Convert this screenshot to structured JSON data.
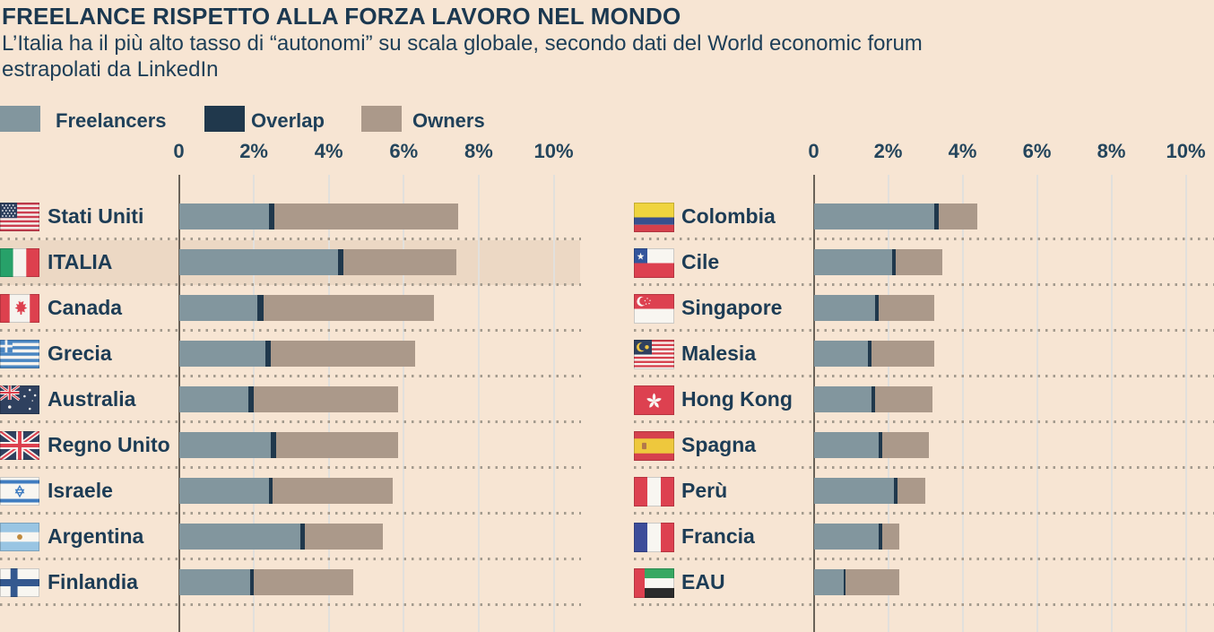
{
  "title": "FREELANCE RISPETTO ALLA FORZA LAVORO NEL MONDO",
  "subtitle_lines": [
    "L’Italia ha il più alto tasso di “autonomi” su scala globale, secondo dati del World economic forum",
    "estrapolati da LinkedIn"
  ],
  "legend": {
    "items": [
      {
        "label": "Freelancers",
        "color": "#82969E"
      },
      {
        "label": "Overlap",
        "color": "#20384C"
      },
      {
        "label": "Owners",
        "color": "#AB998A"
      }
    ]
  },
  "axis": {
    "tick_labels": [
      "0",
      "2%",
      "4%",
      "6%",
      "8%",
      "10%"
    ]
  },
  "colors": {
    "background": "#F7E5D3",
    "highlight_row": "#ECD8C4",
    "freelancers": "#82969E",
    "overlap": "#20384C",
    "owners": "#AB998A",
    "text": "#1D3A52",
    "gridline": "#E2E0DC",
    "axis_line": "#6A6258",
    "dotted_separator": "#A49B8E"
  },
  "chart_data": {
    "type": "bar",
    "orientation": "horizontal",
    "stacked": true,
    "unit": "percent of workforce",
    "x_ticks": [
      0,
      2,
      4,
      6,
      8,
      10
    ],
    "xlim": [
      0,
      10.7
    ],
    "series_keys": [
      "freelancers",
      "overlap",
      "owners"
    ],
    "panels": [
      {
        "rows": [
          {
            "country": "Stati Uniti",
            "flag": "us",
            "freelancers": 2.4,
            "overlap": 0.15,
            "owners": 4.9,
            "total": 7.45,
            "highlight": false
          },
          {
            "country": "ITALIA",
            "flag": "it",
            "freelancers": 4.25,
            "overlap": 0.15,
            "owners": 3.0,
            "total": 7.4,
            "highlight": true
          },
          {
            "country": "Canada",
            "flag": "ca",
            "freelancers": 2.1,
            "overlap": 0.15,
            "owners": 4.55,
            "total": 6.8,
            "highlight": false
          },
          {
            "country": "Grecia",
            "flag": "gr",
            "freelancers": 2.3,
            "overlap": 0.15,
            "owners": 3.85,
            "total": 6.3,
            "highlight": false
          },
          {
            "country": "Australia",
            "flag": "au",
            "freelancers": 1.85,
            "overlap": 0.15,
            "owners": 3.85,
            "total": 5.85,
            "highlight": false
          },
          {
            "country": "Regno Unito",
            "flag": "uk",
            "freelancers": 2.45,
            "overlap": 0.15,
            "owners": 3.25,
            "total": 5.85,
            "highlight": false
          },
          {
            "country": "Israele",
            "flag": "il",
            "freelancers": 2.4,
            "overlap": 0.1,
            "owners": 3.2,
            "total": 5.7,
            "highlight": false
          },
          {
            "country": "Argentina",
            "flag": "ar",
            "freelancers": 3.25,
            "overlap": 0.1,
            "owners": 2.1,
            "total": 5.45,
            "highlight": false
          },
          {
            "country": "Finlandia",
            "flag": "fi",
            "freelancers": 1.9,
            "overlap": 0.1,
            "owners": 2.65,
            "total": 4.65,
            "highlight": false
          }
        ]
      },
      {
        "rows": [
          {
            "country": "Colombia",
            "flag": "co",
            "freelancers": 3.25,
            "overlap": 0.1,
            "owners": 1.05,
            "total": 4.4,
            "highlight": false
          },
          {
            "country": "Cile",
            "flag": "cl",
            "freelancers": 2.1,
            "overlap": 0.1,
            "owners": 1.25,
            "total": 3.45,
            "highlight": false
          },
          {
            "country": "Singapore",
            "flag": "sg",
            "freelancers": 1.65,
            "overlap": 0.1,
            "owners": 1.5,
            "total": 3.25,
            "highlight": false
          },
          {
            "country": "Malesia",
            "flag": "my",
            "freelancers": 1.45,
            "overlap": 0.1,
            "owners": 1.7,
            "total": 3.25,
            "highlight": false
          },
          {
            "country": "Hong Kong",
            "flag": "hk",
            "freelancers": 1.55,
            "overlap": 0.1,
            "owners": 1.55,
            "total": 3.2,
            "highlight": false
          },
          {
            "country": "Spagna",
            "flag": "es",
            "freelancers": 1.75,
            "overlap": 0.1,
            "owners": 1.25,
            "total": 3.1,
            "highlight": false
          },
          {
            "country": "Perù",
            "flag": "pe",
            "freelancers": 2.15,
            "overlap": 0.1,
            "owners": 0.75,
            "total": 3.0,
            "highlight": false
          },
          {
            "country": "Francia",
            "flag": "fr",
            "freelancers": 1.75,
            "overlap": 0.1,
            "owners": 0.45,
            "total": 2.3,
            "highlight": false
          },
          {
            "country": "EAU",
            "flag": "ae",
            "freelancers": 0.8,
            "overlap": 0.05,
            "owners": 1.45,
            "total": 2.3,
            "highlight": false
          }
        ]
      }
    ]
  }
}
